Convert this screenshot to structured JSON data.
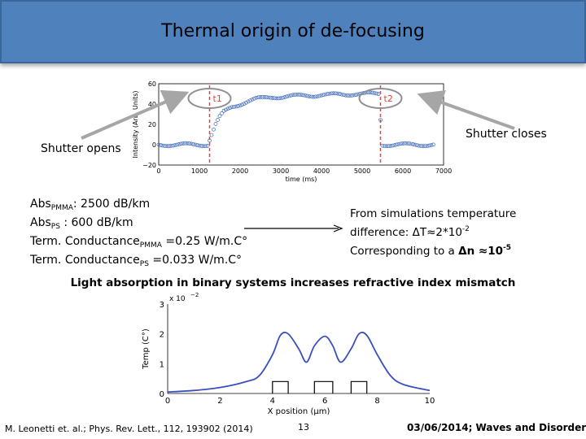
{
  "slide": {
    "title": "Thermal origin of de-focusing",
    "shutter_opens": "Shutter opens",
    "shutter_closes": "Shutter closes",
    "absorption": {
      "line1_prefix": "Abs",
      "line1_sub": "PMMA",
      "line1_value": ": 2500 dB/km",
      "line2_prefix": "Abs",
      "line2_sub": "PS",
      "line2_value": " : 600 dB/km",
      "line3_prefix": "Term. Conductance",
      "line3_sub": "PMMA",
      "line3_value": " =0.25 W/m.C°",
      "line4_prefix": "Term. Conductance",
      "line4_sub": "PS",
      "line4_value": " =0.033 W/m.C°"
    },
    "simulation": {
      "line1": "From simulations temperature",
      "line2_prefix": "difference: ΔT≈2*10",
      "line2_sup": "-2",
      "line3_prefix": "Corresponding to a ",
      "line3_bold": "Δn ≈10",
      "line3_sup": "-5"
    },
    "conclusion": "Light absorption in binary systems increases refractive index mismatch",
    "footer_citation": "M. Leonetti et. al.; Phys. Rev. Lett., 112, 193902 (2014)",
    "page_number": "13",
    "footer_date": "03/06/2014; Waves and Disorder"
  },
  "colors": {
    "title_bar": "#4f81bd",
    "marker_line": "#e8413c",
    "data_points": "#3a66b8",
    "curve": "#3a4fc0",
    "arrow": "#a6a6a6"
  },
  "chart_data": [
    {
      "type": "scatter",
      "xlabel": "time (ms)",
      "ylabel": "Intensity (Arb. Units)",
      "xlim": [
        0,
        7000
      ],
      "ylim": [
        -20,
        60
      ],
      "x_ticks": [
        "0",
        "1000",
        "2000",
        "3000",
        "4000",
        "5000",
        "6000",
        "7000"
      ],
      "y_ticks": [
        "−20",
        "0",
        "20",
        "40",
        "60"
      ],
      "markers": [
        {
          "label": "t1",
          "x": 1250
        },
        {
          "label": "t2",
          "x": 5450
        }
      ],
      "x": [
        0,
        200,
        400,
        600,
        800,
        1000,
        1200,
        1300,
        1400,
        1500,
        1600,
        1800,
        2000,
        2200,
        2400,
        2600,
        2800,
        3000,
        3200,
        3400,
        3600,
        3800,
        4000,
        4200,
        4400,
        4600,
        4800,
        5000,
        5200,
        5400,
        5500,
        5600,
        5800,
        6000,
        6200,
        6400,
        6600,
        6800
      ],
      "y": [
        0,
        0,
        0,
        0,
        0,
        0,
        0,
        10,
        20,
        27,
        32,
        37,
        40,
        43,
        45,
        46,
        47,
        47,
        47.5,
        48,
        48.5,
        48.5,
        49,
        49,
        49.5,
        49.5,
        50,
        50,
        50,
        50,
        0,
        0,
        0,
        0,
        0,
        0,
        0,
        0
      ]
    },
    {
      "type": "line",
      "xlabel": "X position (μm)",
      "ylabel": "Temp (C°)",
      "y_multiplier": "x 10",
      "y_multiplier_exp": "−2",
      "xlim": [
        0,
        10
      ],
      "ylim": [
        0,
        3
      ],
      "x_ticks": [
        "0",
        "2",
        "4",
        "6",
        "8",
        "10"
      ],
      "y_ticks": [
        "0",
        "1",
        "2",
        "3"
      ],
      "x": [
        0,
        1,
        2,
        3,
        3.5,
        4,
        4.3,
        4.6,
        5,
        5.3,
        5.6,
        6,
        6.3,
        6.6,
        7,
        7.3,
        7.6,
        8,
        8.5,
        9,
        10
      ],
      "y": [
        0.05,
        0.1,
        0.2,
        0.4,
        0.6,
        1.3,
        1.95,
        2.0,
        1.5,
        1.05,
        1.6,
        1.92,
        1.6,
        1.05,
        1.5,
        2.0,
        1.95,
        1.3,
        0.6,
        0.3,
        0.1
      ],
      "bumps": [
        [
          4,
          4.6
        ],
        [
          5.6,
          6.3
        ],
        [
          7,
          7.6
        ]
      ]
    }
  ]
}
